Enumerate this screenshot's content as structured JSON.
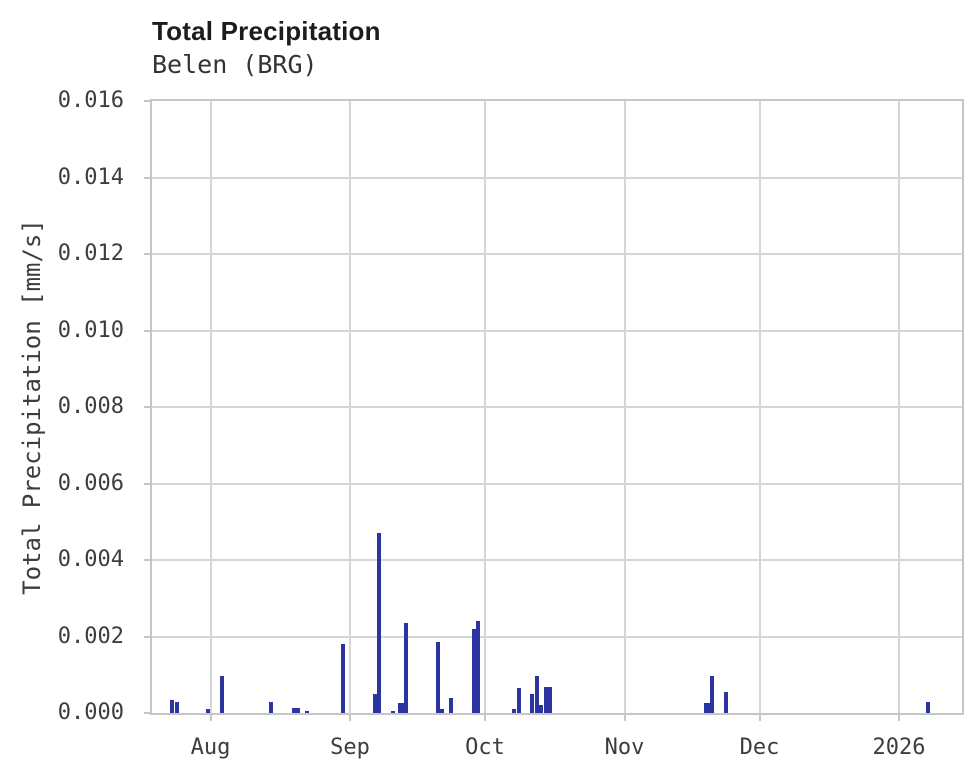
{
  "chart_data": {
    "type": "bar",
    "title": "Total Precipitation",
    "subtitle": "Belen (BRG)",
    "xlabel": "",
    "ylabel": "Total Precipitation [mm/s]",
    "ylim": [
      0,
      0.016
    ],
    "ytick_step": 0.002,
    "ytick_labels": [
      "0.000",
      "0.002",
      "0.004",
      "0.006",
      "0.008",
      "0.010",
      "0.012",
      "0.014",
      "0.016"
    ],
    "x_range": [
      "2025-07-19",
      "2026-01-15"
    ],
    "xticks": [
      {
        "date": "2025-08-01",
        "label": "Aug"
      },
      {
        "date": "2025-09-01",
        "label": "Sep"
      },
      {
        "date": "2025-10-01",
        "label": "Oct"
      },
      {
        "date": "2025-11-01",
        "label": "Nov"
      },
      {
        "date": "2025-12-01",
        "label": "Dec"
      },
      {
        "date": "2026-01-01",
        "label": "2026"
      }
    ],
    "grid": true,
    "legend": "none",
    "bar_color": "#2b34a0",
    "points": [
      {
        "date": "2025-07-23",
        "value": 0.00035
      },
      {
        "date": "2025-07-24",
        "value": 0.00028
      },
      {
        "date": "2025-07-31",
        "value": 0.0001
      },
      {
        "date": "2025-08-03",
        "value": 0.00098
      },
      {
        "date": "2025-08-14",
        "value": 0.00028
      },
      {
        "date": "2025-08-19",
        "value": 0.00012
      },
      {
        "date": "2025-08-20",
        "value": 0.00013
      },
      {
        "date": "2025-08-22",
        "value": 6e-05
      },
      {
        "date": "2025-08-30",
        "value": 0.0018
      },
      {
        "date": "2025-09-06",
        "value": 0.0005
      },
      {
        "date": "2025-09-07",
        "value": 0.0047
      },
      {
        "date": "2025-09-10",
        "value": 6e-05
      },
      {
        "date": "2025-09-12",
        "value": 0.00026,
        "wide": true
      },
      {
        "date": "2025-09-13",
        "value": 0.00235
      },
      {
        "date": "2025-09-20",
        "value": 0.00185
      },
      {
        "date": "2025-09-21",
        "value": 0.0001
      },
      {
        "date": "2025-09-23",
        "value": 0.0004
      },
      {
        "date": "2025-09-28",
        "value": 0.0022
      },
      {
        "date": "2025-09-29",
        "value": 0.0024
      },
      {
        "date": "2025-10-07",
        "value": 0.0001
      },
      {
        "date": "2025-10-08",
        "value": 0.00065
      },
      {
        "date": "2025-10-11",
        "value": 0.0005
      },
      {
        "date": "2025-10-12",
        "value": 0.00098
      },
      {
        "date": "2025-10-13",
        "value": 0.0002
      },
      {
        "date": "2025-10-14",
        "value": 0.00068
      },
      {
        "date": "2025-10-15",
        "value": 0.00068
      },
      {
        "date": "2025-11-19",
        "value": 0.00025,
        "wide": true
      },
      {
        "date": "2025-11-20",
        "value": 0.00098
      },
      {
        "date": "2025-11-23",
        "value": 0.00055
      },
      {
        "date": "2026-01-07",
        "value": 0.0003
      }
    ]
  }
}
